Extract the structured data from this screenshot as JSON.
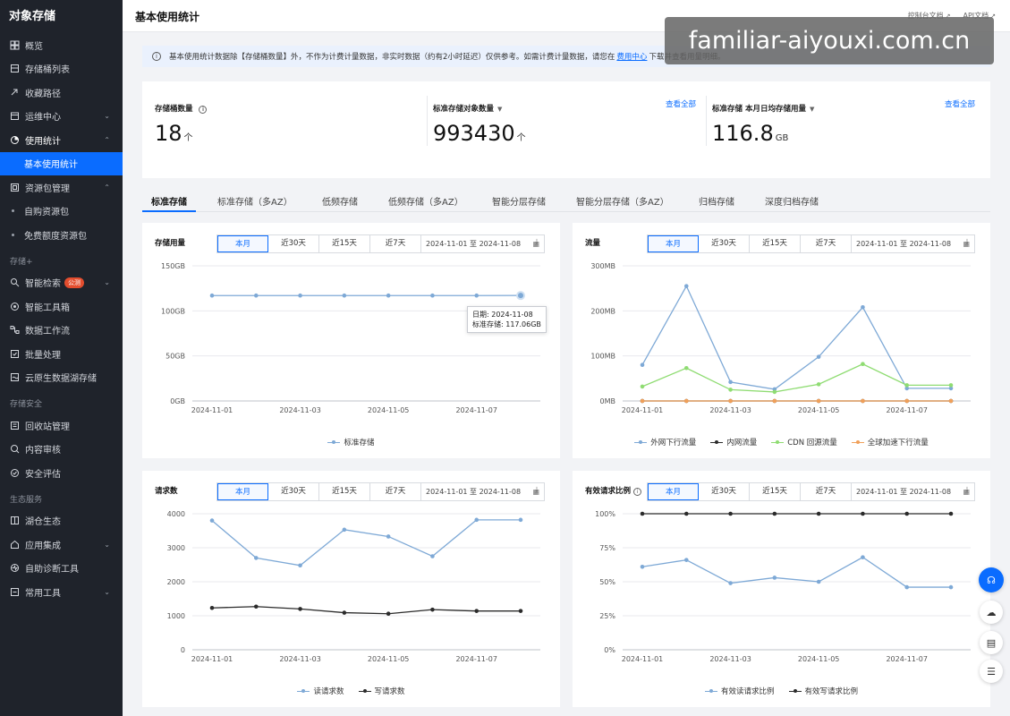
{
  "app": {
    "title": "对象存储"
  },
  "sidebar": {
    "items": [
      {
        "label": "概览",
        "icon": "grid-icon"
      },
      {
        "label": "存储桶列表",
        "icon": "bucket-icon"
      },
      {
        "label": "收藏路径",
        "icon": "link-icon"
      },
      {
        "label": "运维中心",
        "icon": "calendar-icon",
        "chevron": "⌄"
      },
      {
        "label": "使用统计",
        "icon": "pie-icon",
        "chevron": "⌃"
      },
      {
        "label": "基本使用统计"
      },
      {
        "label": "资源包管理",
        "icon": "package-icon",
        "chevron": "⌃"
      },
      {
        "label": "自购资源包"
      },
      {
        "label": "免费额度资源包"
      }
    ],
    "group2_label": "存储+",
    "items2": [
      {
        "label": "智能检索",
        "icon": "search-icon",
        "badge": "公测",
        "chevron": "⌄"
      },
      {
        "label": "智能工具箱",
        "icon": "toolbox-icon"
      },
      {
        "label": "数据工作流",
        "icon": "workflow-icon"
      },
      {
        "label": "批量处理",
        "icon": "batch-icon"
      },
      {
        "label": "云原生数据湖存储",
        "icon": "lake-icon"
      }
    ],
    "group3_label": "存储安全",
    "items3": [
      {
        "label": "回收站管理",
        "icon": "recycle-icon"
      },
      {
        "label": "内容审核",
        "icon": "review-icon"
      },
      {
        "label": "安全评估",
        "icon": "shield-icon"
      }
    ],
    "group4_label": "生态服务",
    "items4": [
      {
        "label": "湖仓生态",
        "icon": "ecosystem-icon"
      },
      {
        "label": "应用集成",
        "icon": "integration-icon",
        "chevron": "⌄"
      },
      {
        "label": "自助诊断工具",
        "icon": "diagnose-icon"
      },
      {
        "label": "常用工具",
        "icon": "tools-icon",
        "chevron": "⌄"
      }
    ]
  },
  "header": {
    "title": "基本使用统计",
    "link1": "控制台文档",
    "link2": "API文档"
  },
  "notice": {
    "text_before": "基本使用统计数据除【存储桶数量】外，不作为计费计量数据，非实时数据（约有2小时延迟）仅供参考。如需计费计量数据，请您在",
    "link": "费用中心",
    "text_after": "下载并查看用量明细。"
  },
  "stats": {
    "bucket_label": "存储桶数量",
    "bucket_value": "18",
    "bucket_unit": "个",
    "objects_label": "标准存储对象数量",
    "objects_value": "993430",
    "objects_unit": "个",
    "objects_more": "查看全部",
    "avg_label": "标准存储 本月日均存储用量",
    "avg_value": "116.8",
    "avg_unit": "GB",
    "avg_more": "查看全部"
  },
  "tabs": [
    "标准存储",
    "标准存储（多AZ）",
    "低频存储",
    "低频存储（多AZ）",
    "智能分层存储",
    "智能分层存储（多AZ）",
    "归档存储",
    "深度归档存储"
  ],
  "range": {
    "opt1": "本月",
    "opt2": "近30天",
    "opt3": "近15天",
    "opt4": "近7天",
    "date": "2024-11-01 至 2024-11-08"
  },
  "watermark": "familiar-aiyouxi.com.cn",
  "colors": {
    "blue": "#7ea9d6",
    "green": "#8fdc72",
    "black": "#2b2b2b",
    "orange": "#f0a05a",
    "accent": "#0a6cff"
  },
  "charts": {
    "storage": {
      "title": "存储用量",
      "tooltip_line1": "日期: 2024-11-08",
      "tooltip_line2": "标准存储: 117.06GB"
    },
    "traffic": {
      "title": "流量"
    },
    "requests": {
      "title": "请求数"
    },
    "ratio": {
      "title": "有效请求比例"
    }
  },
  "chart_data": [
    {
      "type": "line",
      "title": "存储用量",
      "x": [
        "2024-11-01",
        "2024-11-02",
        "2024-11-03",
        "2024-11-04",
        "2024-11-05",
        "2024-11-06",
        "2024-11-07",
        "2024-11-08"
      ],
      "x_ticks": [
        "2024-11-01",
        "2024-11-03",
        "2024-11-05",
        "2024-11-07"
      ],
      "y_ticks": [
        "0GB",
        "50GB",
        "100GB",
        "150GB"
      ],
      "ylim": [
        0,
        150
      ],
      "series": [
        {
          "name": "标准存储",
          "color": "#7ea9d6",
          "values": [
            117,
            117,
            117,
            117,
            117,
            117,
            117,
            117.06
          ]
        }
      ]
    },
    {
      "type": "line",
      "title": "流量",
      "x": [
        "2024-11-01",
        "2024-11-02",
        "2024-11-03",
        "2024-11-04",
        "2024-11-05",
        "2024-11-06",
        "2024-11-07",
        "2024-11-08"
      ],
      "x_ticks": [
        "2024-11-01",
        "2024-11-03",
        "2024-11-05",
        "2024-11-07"
      ],
      "y_ticks": [
        "0MB",
        "100MB",
        "200MB",
        "300MB"
      ],
      "ylim": [
        0,
        300
      ],
      "series": [
        {
          "name": "外网下行流量",
          "color": "#7ea9d6",
          "values": [
            80,
            255,
            42,
            26,
            98,
            208,
            28,
            28
          ]
        },
        {
          "name": "内网流量",
          "color": "#2b2b2b",
          "values": [
            0,
            0,
            0,
            0,
            0,
            0,
            0,
            0
          ]
        },
        {
          "name": "CDN 回源流量",
          "color": "#8fdc72",
          "values": [
            32,
            73,
            25,
            20,
            37,
            82,
            35,
            35
          ]
        },
        {
          "name": "全球加速下行流量",
          "color": "#f0a05a",
          "values": [
            0,
            0,
            0,
            0,
            0,
            0,
            0,
            0
          ]
        }
      ]
    },
    {
      "type": "line",
      "title": "请求数",
      "x": [
        "2024-11-01",
        "2024-11-02",
        "2024-11-03",
        "2024-11-04",
        "2024-11-05",
        "2024-11-06",
        "2024-11-07",
        "2024-11-08"
      ],
      "x_ticks": [
        "2024-11-01",
        "2024-11-03",
        "2024-11-05",
        "2024-11-07"
      ],
      "y_ticks": [
        "0",
        "1000",
        "2000",
        "3000",
        "4000"
      ],
      "ylim": [
        0,
        4000
      ],
      "series": [
        {
          "name": "读请求数",
          "color": "#7ea9d6",
          "values": [
            3800,
            2700,
            2480,
            3530,
            3330,
            2750,
            3820,
            3820
          ]
        },
        {
          "name": "写请求数",
          "color": "#2b2b2b",
          "values": [
            1230,
            1270,
            1200,
            1090,
            1060,
            1180,
            1140,
            1140
          ]
        }
      ]
    },
    {
      "type": "line",
      "title": "有效请求比例",
      "x": [
        "2024-11-01",
        "2024-11-02",
        "2024-11-03",
        "2024-11-04",
        "2024-11-05",
        "2024-11-06",
        "2024-11-07",
        "2024-11-08"
      ],
      "x_ticks": [
        "2024-11-01",
        "2024-11-03",
        "2024-11-05",
        "2024-11-07"
      ],
      "y_ticks": [
        "0%",
        "25%",
        "50%",
        "75%",
        "100%"
      ],
      "ylim": [
        0,
        100
      ],
      "series": [
        {
          "name": "有效读请求比例",
          "color": "#7ea9d6",
          "values": [
            61,
            66,
            49,
            53,
            50,
            68,
            46,
            46
          ]
        },
        {
          "name": "有效写请求比例",
          "color": "#2b2b2b",
          "values": [
            100,
            100,
            100,
            100,
            100,
            100,
            100,
            100
          ]
        }
      ]
    }
  ]
}
